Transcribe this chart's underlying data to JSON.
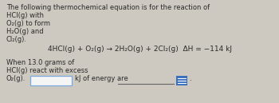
{
  "bg_color": "#cdc9c0",
  "text_color": "#2a2a2a",
  "font_size": 6.0,
  "font_size_eq": 6.5,
  "line1": "The following thermochemical equation is for the reaction of",
  "line2": "HCl(ɡ) with",
  "line3": "O₂(ɡ) to form",
  "line4": "H₂O(ɡ) and",
  "line5": "Cl₂(ɡ).",
  "equation": "4HCl(ɡ) + O₂(ɡ) → 2H₂O(ɡ) + 2Cl₂(ɡ)  ΔH = −114 kJ",
  "bottom1": "When 13.0 grams of",
  "bottom2": "HCl(ɡ) react with excess",
  "bottom3_pre": "O₂(ɡ).",
  "bottom3_mid": "kJ of energy are",
  "input_box_color": "#f5f5f5",
  "input_box_border": "#7aaadd",
  "answer_line_color": "#666666",
  "blue_icon_color": "#3a6fbf",
  "dot_color": "#2a2a2a"
}
